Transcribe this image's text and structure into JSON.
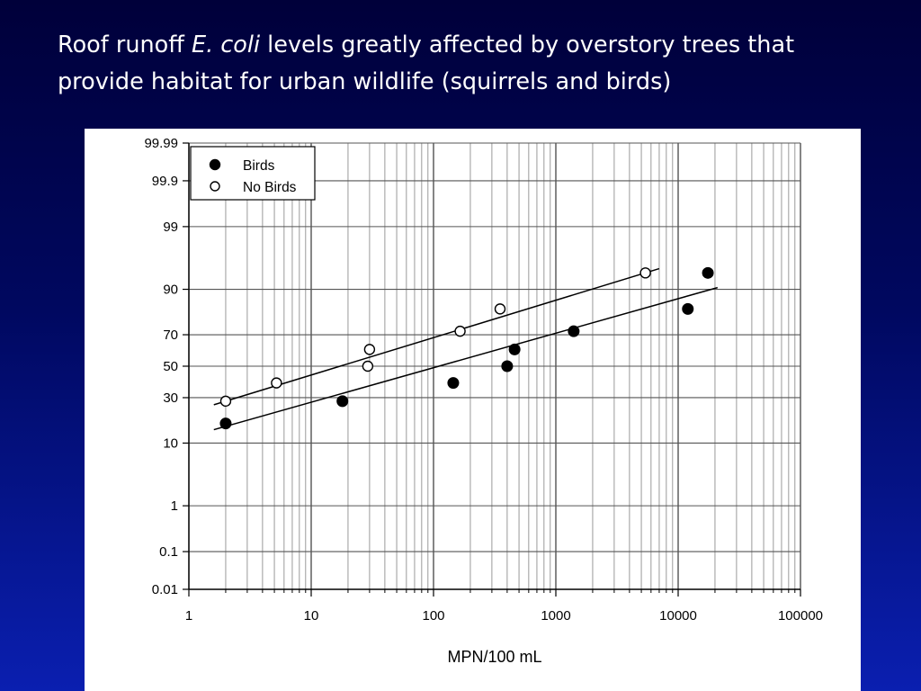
{
  "slide": {
    "title_part1": "Roof runoff ",
    "title_italic": "E. coli",
    "title_part2": " levels greatly affected by overstory trees that provide habitat for urban wildlife (squirrels and birds)"
  },
  "chart_data": {
    "type": "scatter",
    "title": "",
    "xlabel": "MPN/100 mL",
    "ylabel": "",
    "x_scale": "log",
    "y_scale": "probability",
    "xlim": [
      1,
      100000
    ],
    "ylim": [
      0.01,
      99.99
    ],
    "x_ticks": [
      1,
      10,
      100,
      1000,
      10000,
      100000
    ],
    "x_tick_labels": [
      "1",
      "10",
      "100",
      "1000",
      "10000",
      "100000"
    ],
    "y_ticks": [
      0.01,
      0.1,
      1,
      10,
      30,
      50,
      70,
      90,
      99,
      99.9,
      99.99
    ],
    "y_tick_labels": [
      "0.01",
      "0.1",
      "1",
      "10",
      "30",
      "50",
      "70",
      "90",
      "99",
      "99.9",
      "99.99"
    ],
    "grid": true,
    "legend_position": "top-left",
    "series": [
      {
        "name": "Birds",
        "marker": "filled-circle",
        "color": "#000000",
        "points": [
          {
            "x": 2,
            "y": 17
          },
          {
            "x": 18,
            "y": 28
          },
          {
            "x": 145,
            "y": 39
          },
          {
            "x": 400,
            "y": 50
          },
          {
            "x": 460,
            "y": 61
          },
          {
            "x": 1400,
            "y": 72
          },
          {
            "x": 12000,
            "y": 83
          },
          {
            "x": 17500,
            "y": 94
          }
        ],
        "fit_line": [
          {
            "x": 1.6,
            "y": 14.5
          },
          {
            "x": 21000,
            "y": 90.5
          }
        ]
      },
      {
        "name": "No Birds",
        "marker": "open-circle",
        "color": "#000000",
        "points": [
          {
            "x": 2,
            "y": 28
          },
          {
            "x": 5.2,
            "y": 39
          },
          {
            "x": 29,
            "y": 50
          },
          {
            "x": 30,
            "y": 61
          },
          {
            "x": 165,
            "y": 72
          },
          {
            "x": 350,
            "y": 83
          },
          {
            "x": 5400,
            "y": 94
          }
        ],
        "fit_line": [
          {
            "x": 1.6,
            "y": 26
          },
          {
            "x": 7000,
            "y": 94.8
          }
        ]
      }
    ]
  }
}
